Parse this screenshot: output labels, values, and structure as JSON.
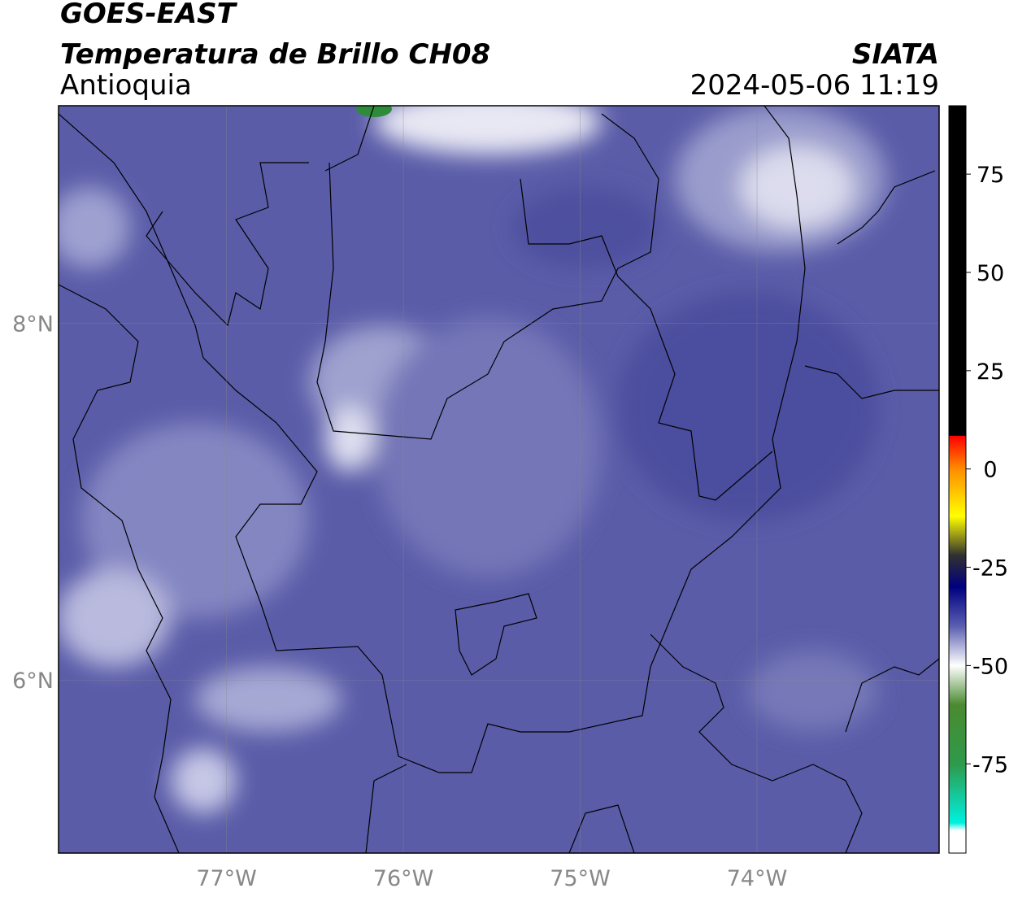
{
  "header": {
    "satellite": "GOES-EAST",
    "product": "Temperatura de Brillo CH08",
    "region": "Antioquia",
    "source": "SIATA",
    "timestamp": "2024-05-06 11:19"
  },
  "map": {
    "xlim": [
      -77.95,
      -72.97
    ],
    "ylim": [
      5.03,
      9.22
    ],
    "lon_ticks": [
      {
        "value": -77,
        "label": "77°W"
      },
      {
        "value": -76,
        "label": "76°W"
      },
      {
        "value": -75,
        "label": "75°W"
      },
      {
        "value": -74,
        "label": "74°W"
      }
    ],
    "lat_ticks": [
      {
        "value": 8,
        "label": "8°N"
      },
      {
        "value": 6,
        "label": "6°N"
      }
    ]
  },
  "colorbar": {
    "lim": [
      -97.7,
      92.4
    ],
    "ticks": [
      75,
      50,
      25,
      0,
      -25,
      -50,
      -75
    ],
    "stops": [
      {
        "value": 92.4,
        "color": "#000000"
      },
      {
        "value": 8.5,
        "color": "#000000"
      },
      {
        "value": 8.4,
        "color": "#ff0000"
      },
      {
        "value": 0,
        "color": "#ff8c00"
      },
      {
        "value": -12,
        "color": "#ffff00"
      },
      {
        "value": -22,
        "color": "#303030"
      },
      {
        "value": -30,
        "color": "#000080"
      },
      {
        "value": -40,
        "color": "#5a5fb0"
      },
      {
        "value": -50,
        "color": "#ffffff"
      },
      {
        "value": -60,
        "color": "#4a8a30"
      },
      {
        "value": -75,
        "color": "#2e9a4a"
      },
      {
        "value": -90,
        "color": "#00f0e0"
      },
      {
        "value": -92,
        "color": "#ffffff"
      },
      {
        "value": -97.7,
        "color": "#ffffff"
      }
    ]
  }
}
